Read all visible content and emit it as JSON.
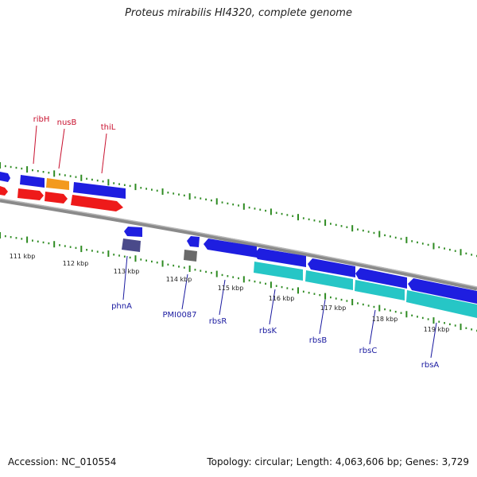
{
  "title": "Proteus mirabilis HI4320, complete genome",
  "footer": {
    "accession": "Accession: NC_010554",
    "topology": "Topology: circular; Length: 4,063,606 bp; Genes: 3,729"
  },
  "colors": {
    "backbone": "#8a8a8a",
    "tick": "#2e8b22",
    "forward_cds": "#1e1ee0",
    "forward_label": "#c8102e",
    "reverse_label": "#1a1aa0",
    "rrna_orange": "#f39a1e",
    "red_gene": "#ee1a1a",
    "cyan_gene": "#26c6c6",
    "navy_gene": "#4a4a8a",
    "gray_gene": "#6a6a6a"
  },
  "scale_labels": [
    "111 kbp",
    "112 kbp",
    "113 kbp",
    "114 kbp",
    "115 kbp",
    "116 kbp",
    "117 kbp",
    "118 kbp",
    "119 kbp"
  ],
  "gene_labels_top": [
    "ribH",
    "nusB",
    "thiL"
  ],
  "gene_labels_bottom": [
    "phnA",
    "PMI0087",
    "rbsR",
    "rbsK",
    "rbsB",
    "rbsC",
    "rbsA"
  ]
}
